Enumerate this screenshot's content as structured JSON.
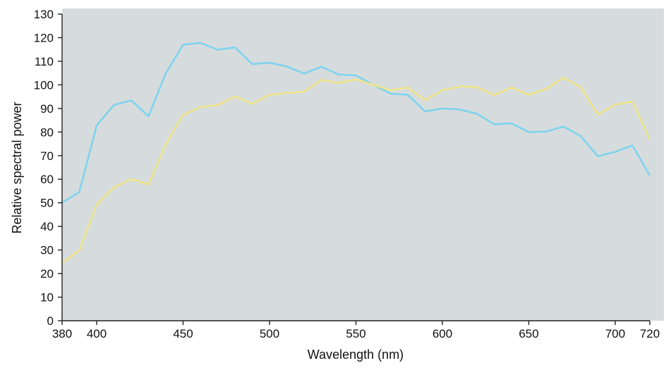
{
  "chart_data": {
    "type": "line",
    "xlabel": "Wavelength (nm)",
    "ylabel": "Relative spectral power",
    "xlim": [
      380,
      720
    ],
    "ylim": [
      0,
      130
    ],
    "xticks": [
      380,
      400,
      450,
      500,
      550,
      600,
      650,
      700,
      720
    ],
    "yticks": [
      0,
      10,
      20,
      30,
      40,
      50,
      60,
      70,
      80,
      90,
      100,
      110,
      120,
      130
    ],
    "grid": false,
    "background_color": "#d6dcdd",
    "x": [
      380,
      390,
      400,
      410,
      420,
      430,
      440,
      450,
      460,
      470,
      480,
      490,
      500,
      510,
      520,
      530,
      540,
      550,
      560,
      570,
      580,
      590,
      600,
      610,
      620,
      630,
      640,
      650,
      660,
      670,
      680,
      690,
      700,
      710,
      720
    ],
    "series": [
      {
        "color": "#7fd3ee",
        "values": [
          50.0,
          54.6,
          82.8,
          91.5,
          93.4,
          86.7,
          104.9,
          117.0,
          117.8,
          114.9,
          115.9,
          108.8,
          109.4,
          107.8,
          104.8,
          107.7,
          104.4,
          104.0,
          100.0,
          96.3,
          95.8,
          88.7,
          90.0,
          89.6,
          87.7,
          83.3,
          83.7,
          80.0,
          80.2,
          82.3,
          78.3,
          69.7,
          71.6,
          74.3,
          61.6
        ]
      },
      {
        "color": "#f0e48a",
        "values": [
          24.5,
          29.8,
          49.3,
          56.5,
          60.0,
          57.8,
          74.8,
          87.3,
          90.6,
          91.4,
          95.1,
          92.0,
          95.7,
          96.6,
          97.1,
          102.1,
          100.8,
          102.3,
          100.0,
          97.7,
          98.9,
          93.5,
          97.7,
          99.3,
          99.0,
          95.7,
          98.9,
          95.8,
          98.2,
          103.1,
          99.1,
          87.4,
          91.6,
          92.9,
          76.8
        ]
      }
    ]
  }
}
